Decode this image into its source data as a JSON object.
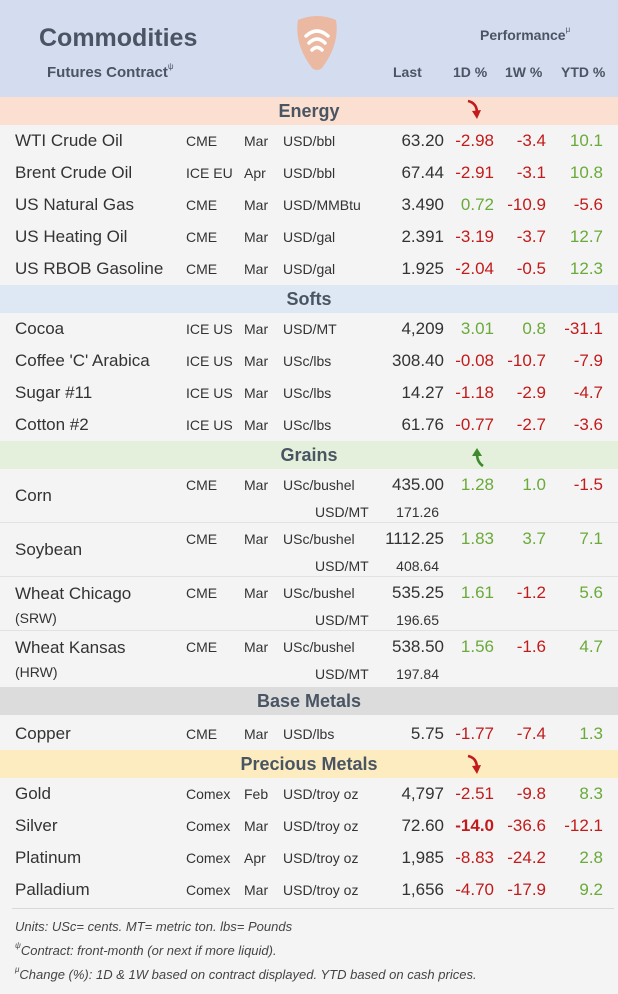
{
  "header": {
    "title": "Commodities",
    "subtitle": "Futures Contract",
    "subtitle_mark": "ψ",
    "performance": "Performance",
    "performance_mark": "μ",
    "col_last": "Last",
    "col_1d": "1D %",
    "col_1w": "1W %",
    "col_ytd": "YTD %"
  },
  "sections": {
    "energy": "Energy",
    "softs": "Softs",
    "grains": "Grains",
    "base": "Base Metals",
    "precious": "Precious Metals"
  },
  "energy": [
    {
      "name": "WTI Crude Oil",
      "exch": "CME",
      "mon": "Mar",
      "unit": "USD/bbl",
      "last": "63.20",
      "d1": "-2.98",
      "w1": "-3.4",
      "ytd": "10.1"
    },
    {
      "name": "Brent Crude Oil",
      "exch": "ICE EU",
      "mon": "Apr",
      "unit": "USD/bbl",
      "last": "67.44",
      "d1": "-2.91",
      "w1": "-3.1",
      "ytd": "10.8"
    },
    {
      "name": "US Natural Gas",
      "exch": "CME",
      "mon": "Mar",
      "unit": "USD/MMBtu",
      "last": "3.490",
      "d1": "0.72",
      "w1": "-10.9",
      "ytd": "-5.6"
    },
    {
      "name": "US Heating Oil",
      "exch": "CME",
      "mon": "Mar",
      "unit": "USD/gal",
      "last": "2.391",
      "d1": "-3.19",
      "w1": "-3.7",
      "ytd": "12.7"
    },
    {
      "name": "US RBOB Gasoline",
      "exch": "CME",
      "mon": "Mar",
      "unit": "USD/gal",
      "last": "1.925",
      "d1": "-2.04",
      "w1": "-0.5",
      "ytd": "12.3"
    }
  ],
  "softs": [
    {
      "name": "Cocoa",
      "exch": "ICE US",
      "mon": "Mar",
      "unit": "USD/MT",
      "last": "4,209",
      "d1": "3.01",
      "w1": "0.8",
      "ytd": "-31.1"
    },
    {
      "name": "Coffee 'C' Arabica",
      "exch": "ICE US",
      "mon": "Mar",
      "unit": "USc/lbs",
      "last": "308.40",
      "d1": "-0.08",
      "w1": "-10.7",
      "ytd": "-7.9"
    },
    {
      "name": "Sugar #11",
      "exch": "ICE US",
      "mon": "Mar",
      "unit": "USc/lbs",
      "last": "14.27",
      "d1": "-1.18",
      "w1": "-2.9",
      "ytd": "-4.7"
    },
    {
      "name": "Cotton #2",
      "exch": "ICE US",
      "mon": "Mar",
      "unit": "USc/lbs",
      "last": "61.76",
      "d1": "-0.77",
      "w1": "-2.7",
      "ytd": "-3.6"
    }
  ],
  "grains": [
    {
      "name": "Corn",
      "grade": "",
      "exch": "CME",
      "mon": "Mar",
      "unit": "USc/bushel",
      "last": "435.00",
      "d1": "1.28",
      "w1": "1.0",
      "ytd": "-1.5",
      "sub_unit": "USD/MT",
      "sub_val": "171.26"
    },
    {
      "name": "Soybean",
      "grade": "",
      "exch": "CME",
      "mon": "Mar",
      "unit": "USc/bushel",
      "last": "1112.25",
      "d1": "1.83",
      "w1": "3.7",
      "ytd": "7.1",
      "sub_unit": "USD/MT",
      "sub_val": "408.64"
    },
    {
      "name": "Wheat Chicago",
      "grade": "(SRW)",
      "exch": "CME",
      "mon": "Mar",
      "unit": "USc/bushel",
      "last": "535.25",
      "d1": "1.61",
      "w1": "-1.2",
      "ytd": "5.6",
      "sub_unit": "USD/MT",
      "sub_val": "196.65"
    },
    {
      "name": "Wheat Kansas",
      "grade": "(HRW)",
      "exch": "CME",
      "mon": "Mar",
      "unit": "USc/bushel",
      "last": "538.50",
      "d1": "1.56",
      "w1": "-1.6",
      "ytd": "4.7",
      "sub_unit": "USD/MT",
      "sub_val": "197.84"
    }
  ],
  "base": [
    {
      "name": "Copper",
      "exch": "CME",
      "mon": "Mar",
      "unit": "USD/lbs",
      "last": "5.75",
      "d1": "-1.77",
      "w1": "-7.4",
      "ytd": "1.3"
    }
  ],
  "precious": [
    {
      "name": "Gold",
      "exch": "Comex",
      "mon": "Feb",
      "unit": "USD/troy oz",
      "last": "4,797",
      "d1": "-2.51",
      "w1": "-9.8",
      "ytd": "8.3"
    },
    {
      "name": "Silver",
      "exch": "Comex",
      "mon": "Mar",
      "unit": "USD/troy oz",
      "last": "72.60",
      "d1": "-14.0",
      "w1": "-36.6",
      "ytd": "-12.1"
    },
    {
      "name": "Platinum",
      "exch": "Comex",
      "mon": "Apr",
      "unit": "USD/troy oz",
      "last": "1,985",
      "d1": "-8.83",
      "w1": "-24.2",
      "ytd": "2.8"
    },
    {
      "name": "Palladium",
      "exch": "Comex",
      "mon": "Mar",
      "unit": "USD/troy oz",
      "last": "1,656",
      "d1": "-4.70",
      "w1": "-17.9",
      "ytd": "9.2"
    }
  ],
  "footer": {
    "units": "Units: USc= cents.  MT= metric ton.  lbs= Pounds",
    "contract_mark": "ψ",
    "contract": "Contract: front-month (or next if more liquid).",
    "change_mark": "μ",
    "change": "Change (%): 1D & 1W based on contract displayed. YTD based on cash prices."
  },
  "colors": {
    "negative": "#c21b1b",
    "positive": "#6aaa3a",
    "header_bg": "#d4dcf0",
    "energy_bg": "#fbe0d2",
    "softs_bg": "#dde8f4",
    "grains_bg": "#e4f0dc",
    "base_bg": "#dcdcdc",
    "precious_bg": "#fcecc0"
  },
  "icons": {
    "logo": "shield-wifi-logo",
    "energy_arrow": "down-arrow-icon",
    "grains_arrow": "up-arrow-icon",
    "precious_arrow": "down-arrow-icon"
  }
}
